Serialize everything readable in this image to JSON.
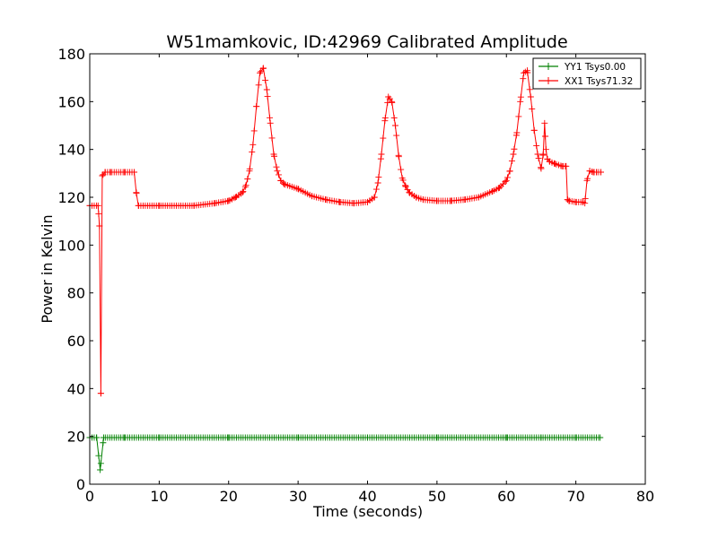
{
  "chart_data": {
    "type": "line",
    "title": "W51mamkovic, ID:42969 Calibrated Amplitude",
    "xlabel": "Time (seconds)",
    "ylabel": "Power in Kelvin",
    "xlim": [
      0,
      80
    ],
    "ylim": [
      0,
      180
    ],
    "xticks": [
      0,
      10,
      20,
      30,
      40,
      50,
      60,
      70,
      80
    ],
    "yticks": [
      0,
      20,
      40,
      60,
      80,
      100,
      120,
      140,
      160,
      180
    ],
    "xtick_labels": [
      "0",
      "10",
      "20",
      "30",
      "40",
      "50",
      "60",
      "70",
      "80"
    ],
    "ytick_labels": [
      "0",
      "20",
      "40",
      "60",
      "80",
      "100",
      "120",
      "140",
      "160",
      "180"
    ],
    "grid": false,
    "legend_position": "top-right",
    "marker": "+",
    "series": [
      {
        "name": "YY1 Tsys0.00",
        "color": "#008000",
        "x": [
          0,
          1,
          1.5,
          2,
          5,
          10,
          20,
          30,
          40,
          50,
          60,
          65,
          70,
          73.5
        ],
        "y": [
          19.5,
          19.5,
          6,
          19.5,
          19.5,
          19.5,
          19.5,
          19.5,
          19.5,
          19.5,
          19.5,
          19.5,
          19.5,
          19.5
        ]
      },
      {
        "name": "XX1 Tsys71.32",
        "color": "#ff0000",
        "x": [
          0,
          1.2,
          1.4,
          1.6,
          1.8,
          2.2,
          3,
          5,
          6.4,
          6.7,
          7,
          10,
          15,
          18,
          20,
          21,
          22,
          22.5,
          23,
          23.5,
          24,
          24.5,
          25,
          25.5,
          26,
          26.5,
          27,
          27.5,
          28,
          30,
          32,
          34,
          36,
          38,
          40,
          41,
          41.5,
          42,
          42.5,
          43,
          43.5,
          44,
          44.5,
          45,
          45.5,
          46,
          47,
          48,
          50,
          52,
          54,
          56,
          58,
          59,
          60,
          60.5,
          61,
          61.5,
          62,
          62.5,
          63,
          63.5,
          64,
          64.5,
          65,
          65.3,
          65.5,
          65.7,
          65.9,
          66.2,
          67,
          68,
          68.6,
          68.8,
          69,
          70,
          71,
          71.3,
          71.6,
          72,
          72.5,
          73,
          73.6
        ],
        "y": [
          116.5,
          116.5,
          108,
          38,
          129,
          130.5,
          130.5,
          130.5,
          130.5,
          122,
          116.5,
          116.5,
          116.5,
          117.5,
          118.5,
          120,
          122,
          125,
          131,
          142,
          158,
          172,
          174,
          165,
          151,
          138,
          131,
          127,
          125.5,
          123.5,
          120.5,
          119,
          118,
          117.5,
          118,
          120,
          126,
          138,
          152,
          162,
          160,
          150,
          137,
          128,
          124.5,
          122,
          120,
          119,
          118.5,
          118.5,
          119,
          120,
          122.5,
          124,
          127,
          131,
          138,
          147,
          160,
          172,
          173,
          162,
          148,
          138,
          132,
          138,
          151,
          140,
          136,
          135,
          134,
          133,
          133,
          119,
          118.5,
          118,
          118,
          117.5,
          127,
          131,
          130.5,
          130.5,
          130.5
        ]
      }
    ]
  }
}
